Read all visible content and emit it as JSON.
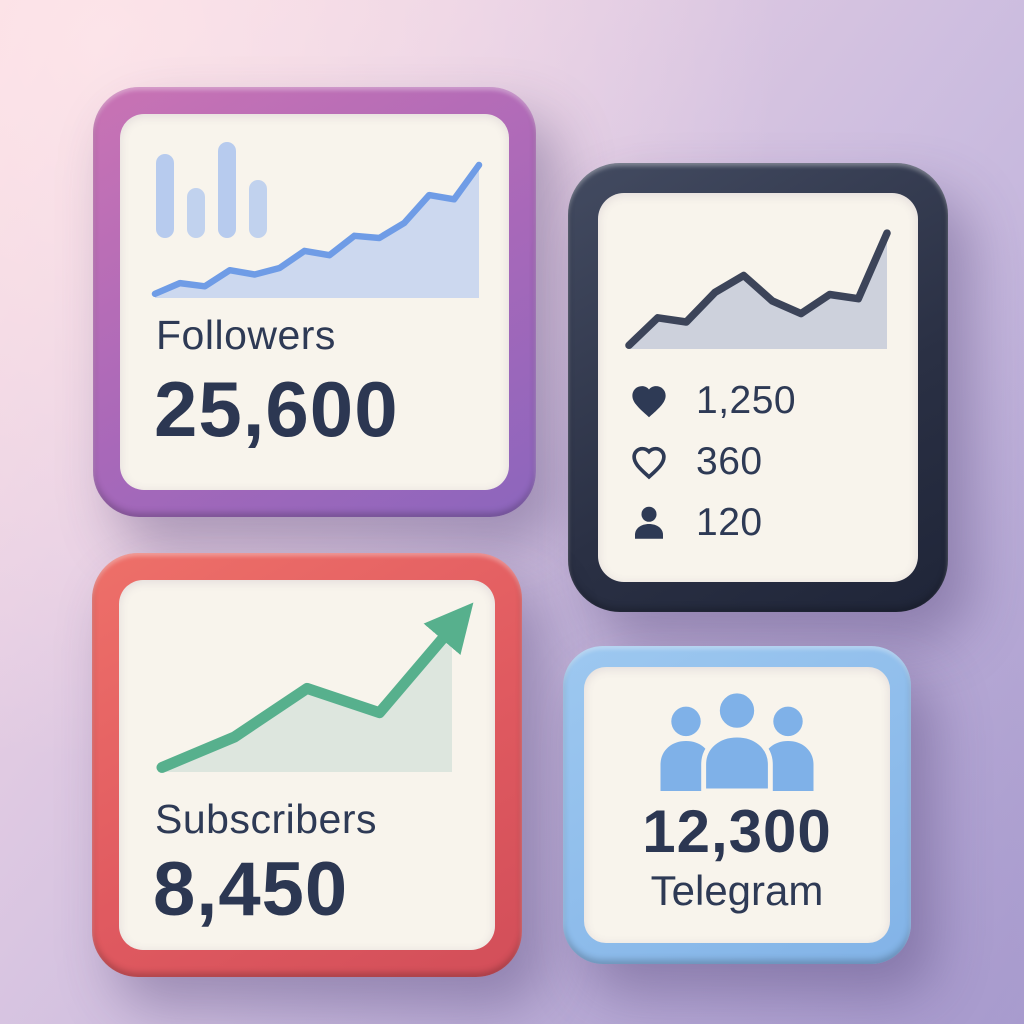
{
  "background": {
    "gradient_from": "#f8dadf",
    "gradient_to": "#b0a4d5"
  },
  "cards": {
    "followers": {
      "label": "Followers",
      "value": "25,600",
      "accent": "#a868b9",
      "line_color": "#6f9ce6"
    },
    "engagement": {
      "accent": "#2a3044",
      "line_color": "#3c4459",
      "stats": [
        {
          "icon": "heart-filled-icon",
          "value": "1,250"
        },
        {
          "icon": "heart-outline-icon",
          "value": "360"
        },
        {
          "icon": "person-icon",
          "value": "120"
        }
      ]
    },
    "subscribers": {
      "label": "Subscribers",
      "value": "8,450",
      "accent": "#e05a60",
      "line_color": "#57b08d"
    },
    "telegram": {
      "value": "12,300",
      "label": "Telegram",
      "accent": "#82b3e7"
    }
  },
  "chart_data": [
    {
      "type": "area",
      "name": "followers-trend-sparkline",
      "title": "Followers",
      "values": [
        1,
        1.5,
        1.35,
        2.1,
        1.9,
        2.2,
        3.0,
        2.8,
        3.7,
        3.6,
        4.3,
        5.6,
        5.4,
        7.0
      ],
      "color": "#6f9ce6",
      "fill": "#ccd8ef",
      "axes": "none",
      "legend": "none"
    },
    {
      "type": "area",
      "name": "engagement-trend-sparkline",
      "title": "Engagement",
      "values": [
        1.5,
        2.8,
        2.6,
        4.0,
        4.8,
        3.6,
        3.0,
        3.9,
        3.7,
        6.8
      ],
      "color": "#3c4459",
      "fill": "#cdd1dc",
      "axes": "none",
      "legend": "none"
    },
    {
      "type": "area",
      "name": "subscribers-trend-sparkline",
      "title": "Subscribers",
      "values": [
        1,
        2.0,
        3.6,
        2.8,
        5.6
      ],
      "color": "#57b08d",
      "fill": "#dde6de",
      "arrow": true,
      "axes": "none",
      "legend": "none"
    }
  ]
}
